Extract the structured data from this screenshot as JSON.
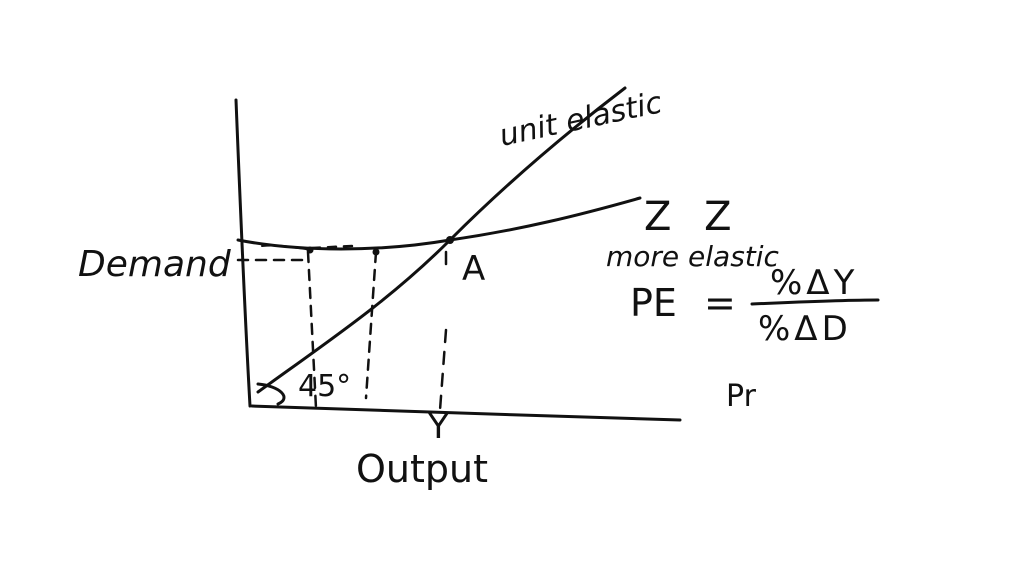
{
  "colors": {
    "background": "#ffffff",
    "ink": "#111111"
  },
  "labels": {
    "y_axis": "Demand",
    "x_axis": "Output",
    "unit_elastic": "unit elastic",
    "zz": "Z Z",
    "more_elastic": "more elastic",
    "point": "A",
    "output_point": "Y",
    "angle": "45°",
    "pe_lhs": "PE",
    "pe_equals": "=",
    "pe_numerator": "%ΔY",
    "pe_denominator": "%ΔD",
    "pr": "Pr"
  }
}
